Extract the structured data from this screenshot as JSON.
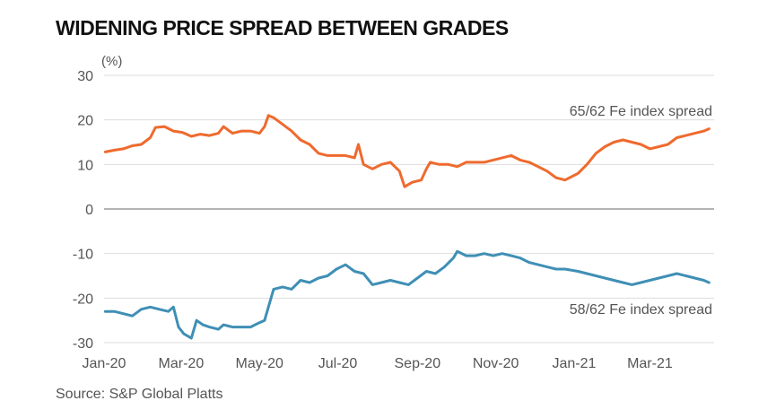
{
  "chart_data": {
    "type": "line",
    "title": "WIDENING PRICE SPREAD BETWEEN GRADES",
    "ylabel": "(%)",
    "xlabel": "",
    "ylim": [
      -30,
      30
    ],
    "y_ticks": [
      30,
      20,
      10,
      0,
      -10,
      -20,
      -30
    ],
    "y_tick_labels": [
      "30",
      "20",
      "10",
      "0",
      "-10",
      "-20",
      "-30"
    ],
    "xlim": [
      "2020-01-01",
      "2021-04-20"
    ],
    "x_ticks": [
      "2020-01-01",
      "2020-03-01",
      "2020-05-01",
      "2020-07-01",
      "2020-09-01",
      "2020-11-01",
      "2021-01-01",
      "2021-03-01"
    ],
    "x_tick_labels": [
      "Jan-20",
      "Mar-20",
      "May-20",
      "Jul-20",
      "Sep-20",
      "Nov-20",
      "Jan-21",
      "Mar-21"
    ],
    "grid": "horizontal",
    "colors": {
      "orange": "#ef6a2e",
      "blue": "#3f8fb5",
      "grid": "#dddddd",
      "zero": "#888888"
    },
    "series": [
      {
        "name": "65/62 Fe index spread",
        "color": "#ef6a2e",
        "points": [
          [
            "2020-01-02",
            12.8
          ],
          [
            "2020-01-09",
            13.2
          ],
          [
            "2020-01-16",
            13.5
          ],
          [
            "2020-01-23",
            14.2
          ],
          [
            "2020-01-30",
            14.5
          ],
          [
            "2020-02-06",
            16.0
          ],
          [
            "2020-02-10",
            18.3
          ],
          [
            "2020-02-17",
            18.5
          ],
          [
            "2020-02-24",
            17.5
          ],
          [
            "2020-03-02",
            17.2
          ],
          [
            "2020-03-09",
            16.3
          ],
          [
            "2020-03-16",
            16.8
          ],
          [
            "2020-03-23",
            16.5
          ],
          [
            "2020-03-30",
            17.0
          ],
          [
            "2020-04-03",
            18.5
          ],
          [
            "2020-04-10",
            17.0
          ],
          [
            "2020-04-17",
            17.5
          ],
          [
            "2020-04-24",
            17.5
          ],
          [
            "2020-05-01",
            17.0
          ],
          [
            "2020-05-05",
            18.5
          ],
          [
            "2020-05-08",
            21.0
          ],
          [
            "2020-05-12",
            20.5
          ],
          [
            "2020-05-19",
            19.0
          ],
          [
            "2020-05-26",
            17.5
          ],
          [
            "2020-06-02",
            15.5
          ],
          [
            "2020-06-09",
            14.5
          ],
          [
            "2020-06-16",
            12.5
          ],
          [
            "2020-06-23",
            12.0
          ],
          [
            "2020-06-30",
            12.0
          ],
          [
            "2020-07-07",
            12.0
          ],
          [
            "2020-07-14",
            11.5
          ],
          [
            "2020-07-17",
            14.5
          ],
          [
            "2020-07-21",
            10.0
          ],
          [
            "2020-07-28",
            9.0
          ],
          [
            "2020-08-04",
            10.0
          ],
          [
            "2020-08-11",
            10.5
          ],
          [
            "2020-08-18",
            8.5
          ],
          [
            "2020-08-22",
            5.0
          ],
          [
            "2020-08-28",
            6.0
          ],
          [
            "2020-09-04",
            6.5
          ],
          [
            "2020-09-08",
            9.0
          ],
          [
            "2020-09-11",
            10.5
          ],
          [
            "2020-09-18",
            10.0
          ],
          [
            "2020-09-25",
            10.0
          ],
          [
            "2020-10-02",
            9.5
          ],
          [
            "2020-10-09",
            10.5
          ],
          [
            "2020-10-16",
            10.5
          ],
          [
            "2020-10-23",
            10.5
          ],
          [
            "2020-10-30",
            11.0
          ],
          [
            "2020-11-06",
            11.5
          ],
          [
            "2020-11-13",
            12.0
          ],
          [
            "2020-11-20",
            11.0
          ],
          [
            "2020-11-27",
            10.5
          ],
          [
            "2020-12-04",
            9.5
          ],
          [
            "2020-12-11",
            8.5
          ],
          [
            "2020-12-18",
            7.0
          ],
          [
            "2020-12-25",
            6.5
          ],
          [
            "2021-01-04",
            8.0
          ],
          [
            "2021-01-11",
            10.0
          ],
          [
            "2021-01-18",
            12.5
          ],
          [
            "2021-01-25",
            14.0
          ],
          [
            "2021-02-01",
            15.0
          ],
          [
            "2021-02-08",
            15.5
          ],
          [
            "2021-02-15",
            15.0
          ],
          [
            "2021-02-22",
            14.5
          ],
          [
            "2021-03-01",
            13.5
          ],
          [
            "2021-03-08",
            14.0
          ],
          [
            "2021-03-15",
            14.5
          ],
          [
            "2021-03-22",
            16.0
          ],
          [
            "2021-03-29",
            16.5
          ],
          [
            "2021-04-05",
            17.0
          ],
          [
            "2021-04-12",
            17.5
          ],
          [
            "2021-04-16",
            18.0
          ]
        ]
      },
      {
        "name": "58/62 Fe index spread",
        "color": "#3f8fb5",
        "points": [
          [
            "2020-01-02",
            -23.0
          ],
          [
            "2020-01-09",
            -23.0
          ],
          [
            "2020-01-16",
            -23.5
          ],
          [
            "2020-01-23",
            -24.0
          ],
          [
            "2020-01-30",
            -22.5
          ],
          [
            "2020-02-06",
            -22.0
          ],
          [
            "2020-02-13",
            -22.5
          ],
          [
            "2020-02-20",
            -23.0
          ],
          [
            "2020-02-24",
            -22.0
          ],
          [
            "2020-02-28",
            -26.5
          ],
          [
            "2020-03-03",
            -28.0
          ],
          [
            "2020-03-09",
            -29.0
          ],
          [
            "2020-03-13",
            -25.0
          ],
          [
            "2020-03-18",
            -26.0
          ],
          [
            "2020-03-23",
            -26.5
          ],
          [
            "2020-03-30",
            -27.0
          ],
          [
            "2020-04-03",
            -26.0
          ],
          [
            "2020-04-10",
            -26.5
          ],
          [
            "2020-04-17",
            -26.5
          ],
          [
            "2020-04-24",
            -26.5
          ],
          [
            "2020-05-01",
            -25.5
          ],
          [
            "2020-05-05",
            -25.0
          ],
          [
            "2020-05-08",
            -22.0
          ],
          [
            "2020-05-12",
            -18.0
          ],
          [
            "2020-05-19",
            -17.5
          ],
          [
            "2020-05-26",
            -18.0
          ],
          [
            "2020-06-02",
            -16.0
          ],
          [
            "2020-06-09",
            -16.5
          ],
          [
            "2020-06-16",
            -15.5
          ],
          [
            "2020-06-23",
            -15.0
          ],
          [
            "2020-06-30",
            -13.5
          ],
          [
            "2020-07-07",
            -12.5
          ],
          [
            "2020-07-14",
            -14.0
          ],
          [
            "2020-07-21",
            -14.5
          ],
          [
            "2020-07-28",
            -17.0
          ],
          [
            "2020-08-04",
            -16.5
          ],
          [
            "2020-08-11",
            -16.0
          ],
          [
            "2020-08-18",
            -16.5
          ],
          [
            "2020-08-25",
            -17.0
          ],
          [
            "2020-09-01",
            -15.5
          ],
          [
            "2020-09-08",
            -14.0
          ],
          [
            "2020-09-15",
            -14.5
          ],
          [
            "2020-09-22",
            -13.0
          ],
          [
            "2020-09-29",
            -11.0
          ],
          [
            "2020-10-02",
            -9.5
          ],
          [
            "2020-10-09",
            -10.5
          ],
          [
            "2020-10-16",
            -10.5
          ],
          [
            "2020-10-23",
            -10.0
          ],
          [
            "2020-10-30",
            -10.5
          ],
          [
            "2020-11-06",
            -10.0
          ],
          [
            "2020-11-13",
            -10.5
          ],
          [
            "2020-11-20",
            -11.0
          ],
          [
            "2020-11-27",
            -12.0
          ],
          [
            "2020-12-04",
            -12.5
          ],
          [
            "2020-12-11",
            -13.0
          ],
          [
            "2020-12-18",
            -13.5
          ],
          [
            "2020-12-25",
            -13.5
          ],
          [
            "2021-01-04",
            -14.0
          ],
          [
            "2021-01-11",
            -14.5
          ],
          [
            "2021-01-18",
            -15.0
          ],
          [
            "2021-01-25",
            -15.5
          ],
          [
            "2021-02-01",
            -16.0
          ],
          [
            "2021-02-08",
            -16.5
          ],
          [
            "2021-02-15",
            -17.0
          ],
          [
            "2021-02-22",
            -16.5
          ],
          [
            "2021-03-01",
            -16.0
          ],
          [
            "2021-03-08",
            -15.5
          ],
          [
            "2021-03-15",
            -15.0
          ],
          [
            "2021-03-22",
            -14.5
          ],
          [
            "2021-03-29",
            -15.0
          ],
          [
            "2021-04-05",
            -15.5
          ],
          [
            "2021-04-12",
            -16.0
          ],
          [
            "2021-04-16",
            -16.5
          ]
        ]
      }
    ]
  },
  "source": "Source: S&P Global Platts"
}
